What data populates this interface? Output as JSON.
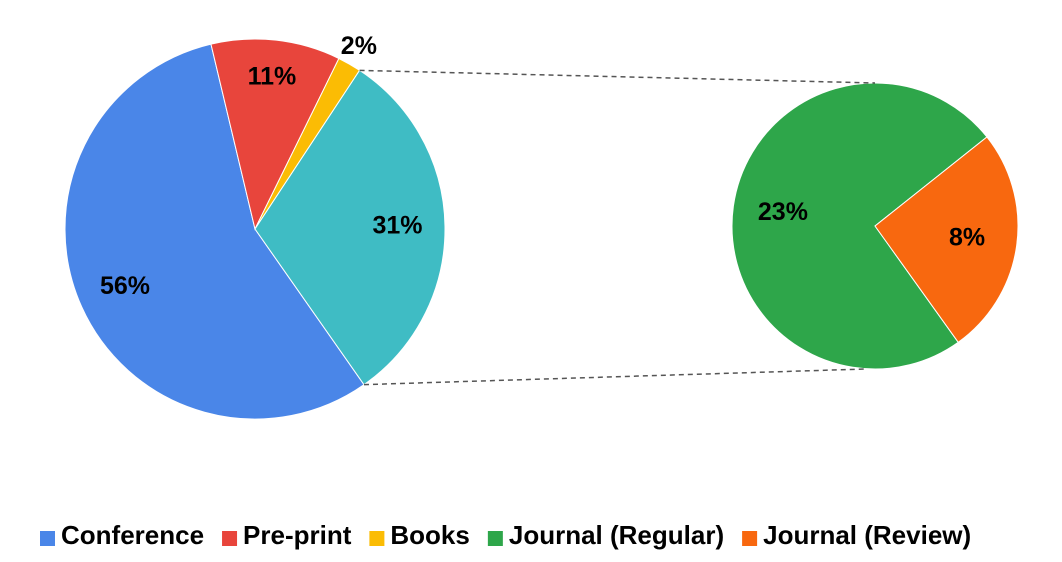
{
  "chart_data": {
    "type": "pie-of-pie",
    "categories": [
      "Conference",
      "Pre-print",
      "Books",
      null
    ],
    "values": [
      56,
      11,
      2,
      31
    ],
    "value_labels": [
      "56%",
      "11%",
      "2%",
      "31%"
    ],
    "colors": [
      "#4a86e8",
      "#e8453c",
      "#fbbc04",
      "#3fbcc4"
    ],
    "sub_categories": [
      "Journal (Regular)",
      "Journal (Review)"
    ],
    "sub_values": [
      23,
      8
    ],
    "sub_value_labels": [
      "23%",
      "8%"
    ],
    "sub_colors": [
      "#2ea64a",
      "#f8680f"
    ],
    "legend": "bottom"
  }
}
